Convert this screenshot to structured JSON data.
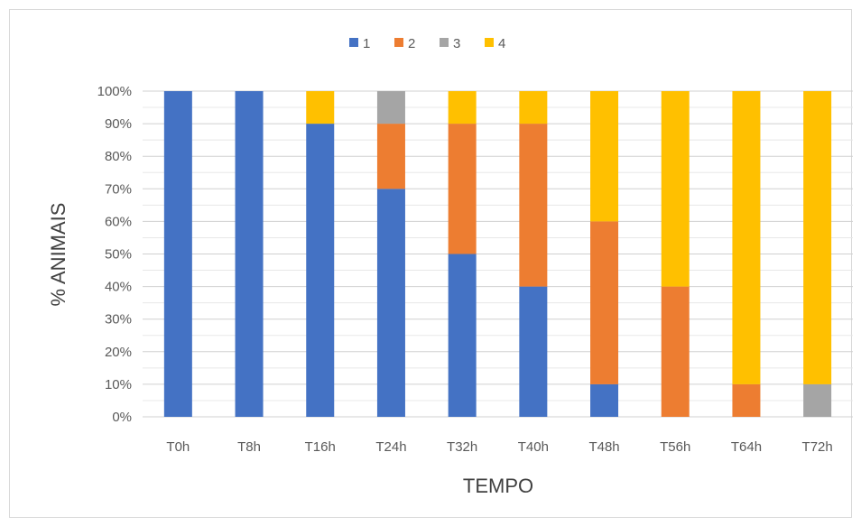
{
  "chart_data": {
    "type": "bar",
    "stacked": true,
    "normalized": true,
    "title": "",
    "xlabel": "TEMPO",
    "ylabel": "% ANIMAIS",
    "ylim": [
      0,
      100
    ],
    "yticks": [
      "0%",
      "10%",
      "20%",
      "30%",
      "40%",
      "50%",
      "60%",
      "70%",
      "80%",
      "90%",
      "100%"
    ],
    "grid": true,
    "legend_position": "top",
    "categories": [
      "T0h",
      "T8h",
      "T16h",
      "T24h",
      "T32h",
      "T40h",
      "T48h",
      "T56h",
      "T64h",
      "T72h"
    ],
    "series": [
      {
        "name": "1",
        "color": "#4472C4",
        "values": [
          100,
          100,
          90,
          70,
          50,
          40,
          10,
          0,
          0,
          0
        ]
      },
      {
        "name": "2",
        "color": "#ED7D31",
        "values": [
          0,
          0,
          0,
          20,
          40,
          50,
          50,
          40,
          10,
          0
        ]
      },
      {
        "name": "3",
        "color": "#A5A5A5",
        "values": [
          0,
          0,
          0,
          10,
          0,
          0,
          0,
          0,
          0,
          10
        ]
      },
      {
        "name": "4",
        "color": "#FFC000",
        "values": [
          0,
          0,
          10,
          0,
          10,
          10,
          40,
          60,
          90,
          90
        ]
      }
    ]
  }
}
